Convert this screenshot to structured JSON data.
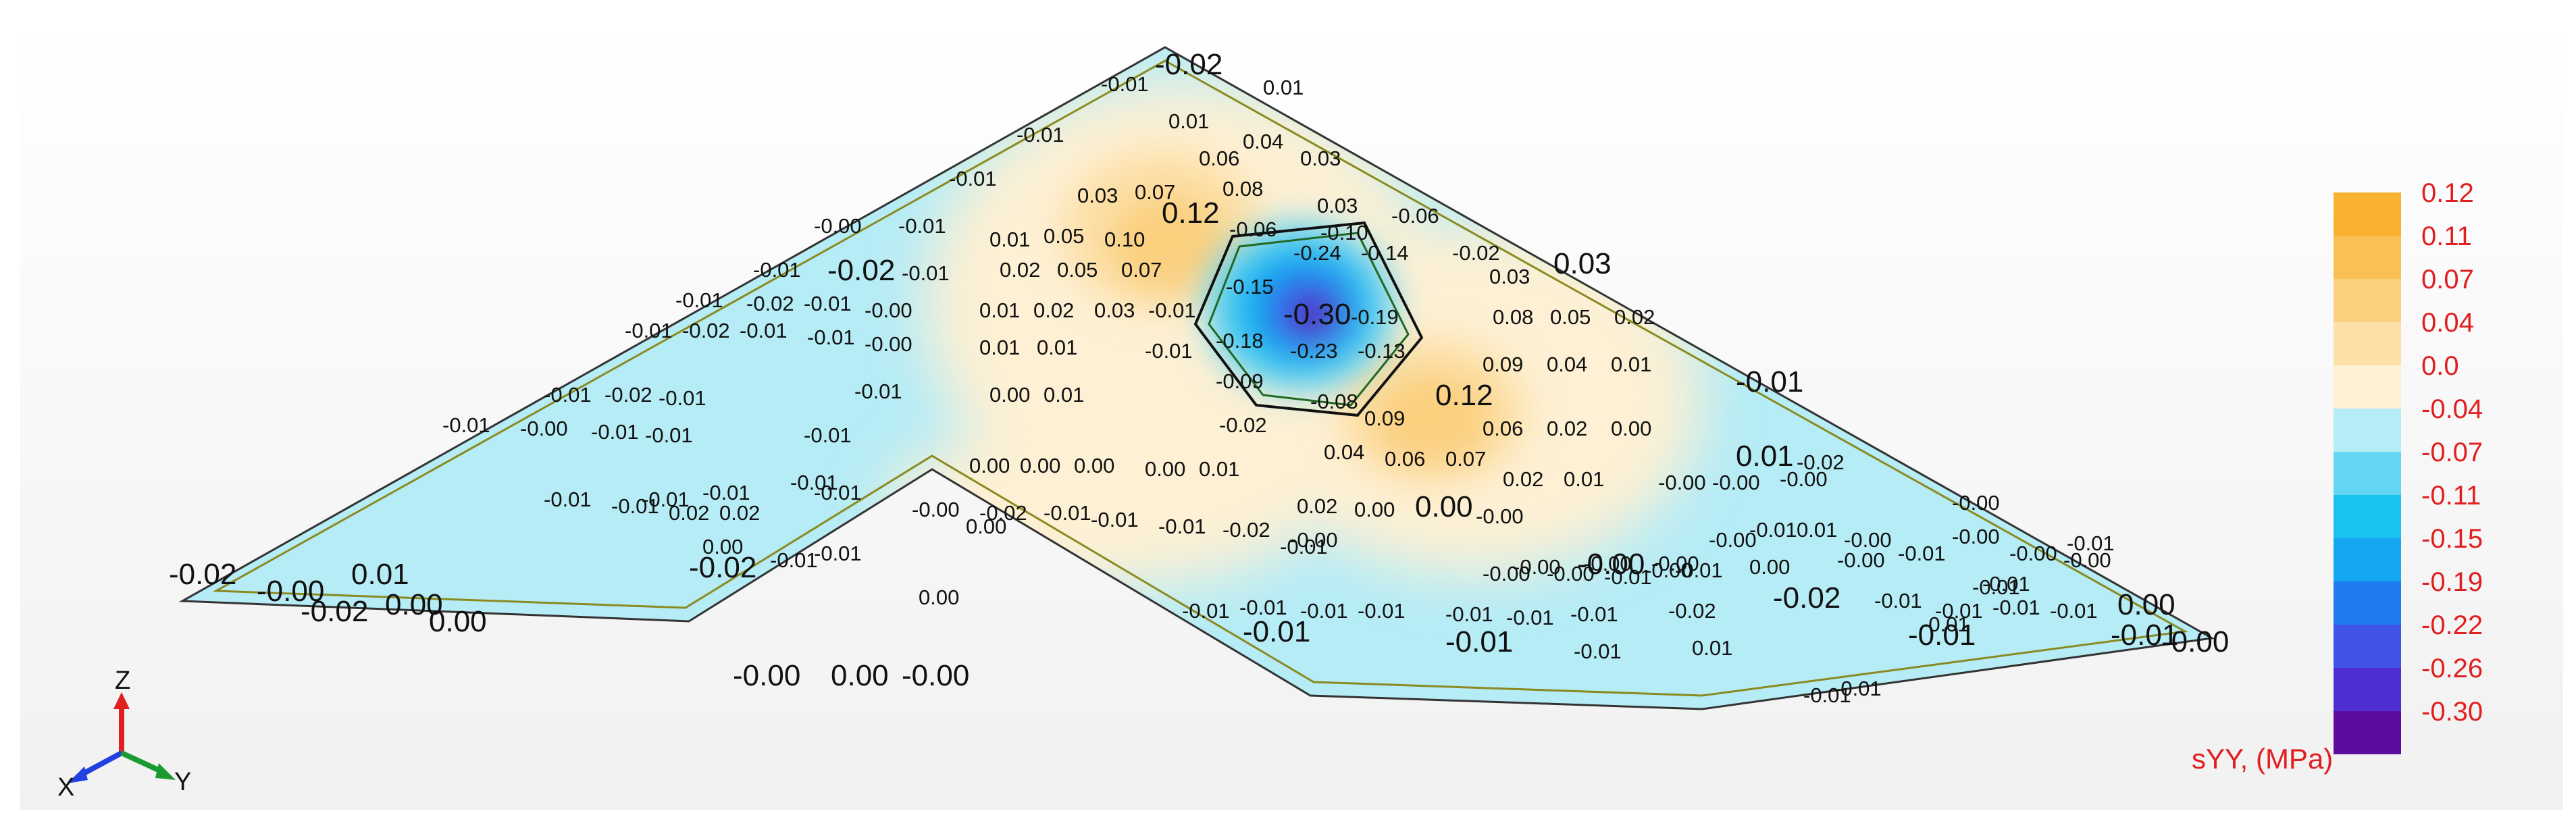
{
  "legend": {
    "quantity": "sYY, (MPa)",
    "entries": [
      {
        "label": "0.12",
        "color": "#f9b22f"
      },
      {
        "label": "0.11",
        "color": "#fac055"
      },
      {
        "label": "0.07",
        "color": "#fbd07f"
      },
      {
        "label": "0.04",
        "color": "#fde0a8"
      },
      {
        "label": "0.0",
        "color": "#fdf0d4"
      },
      {
        "label": "-0.04",
        "color": "#b6ecf6"
      },
      {
        "label": "-0.07",
        "color": "#64d5f3"
      },
      {
        "label": "-0.11",
        "color": "#18c3f1"
      },
      {
        "label": "-0.15",
        "color": "#14a6ee"
      },
      {
        "label": "-0.19",
        "color": "#1e7cf0"
      },
      {
        "label": "-0.22",
        "color": "#3f53e6"
      },
      {
        "label": "-0.26",
        "color": "#4e2ed0"
      },
      {
        "label": "-0.30",
        "color": "#5c0d9e"
      }
    ]
  },
  "axes_triad": {
    "z": "Z",
    "x": "X",
    "y": "Y",
    "z_color": "#e02020",
    "x_color": "#2040e0",
    "y_color": "#1a9a30"
  },
  "contour_labels": [
    {
      "t": "-0.02",
      "big": true
    },
    {
      "t": "-0.01"
    },
    {
      "t": "0.01"
    },
    {
      "t": "0.01"
    },
    {
      "t": "0.04"
    },
    {
      "t": "0.03"
    },
    {
      "t": "0.06"
    },
    {
      "t": "0.03"
    },
    {
      "t": "-0.01"
    },
    {
      "t": "0.03"
    },
    {
      "t": "0.07"
    },
    {
      "t": "0.08"
    },
    {
      "t": "-0.01"
    },
    {
      "t": "0.12",
      "big": true
    },
    {
      "t": "-0.06"
    },
    {
      "t": "-0.10"
    },
    {
      "t": "-0.06"
    },
    {
      "t": "-0.00"
    },
    {
      "t": "-0.01"
    },
    {
      "t": "0.01"
    },
    {
      "t": "0.05"
    },
    {
      "t": "0.10"
    },
    {
      "t": "-0.24"
    },
    {
      "t": "-0.14"
    },
    {
      "t": "-0.02"
    },
    {
      "t": "-0.01"
    },
    {
      "t": "-0.02",
      "big": true
    },
    {
      "t": "-0.01"
    },
    {
      "t": "0.02"
    },
    {
      "t": "0.05"
    },
    {
      "t": "0.07"
    },
    {
      "t": "-0.15"
    },
    {
      "t": "0.03"
    },
    {
      "t": "0.03",
      "big": true
    },
    {
      "t": "-0.01"
    },
    {
      "t": "-0.02"
    },
    {
      "t": "-0.01"
    },
    {
      "t": "-0.00"
    },
    {
      "t": "0.01"
    },
    {
      "t": "0.02"
    },
    {
      "t": "0.03"
    },
    {
      "t": "-0.01"
    },
    {
      "t": "-0.30",
      "big": true
    },
    {
      "t": "-0.19"
    },
    {
      "t": "0.08"
    },
    {
      "t": "0.05"
    },
    {
      "t": "0.02"
    },
    {
      "t": "-0.01"
    },
    {
      "t": "-0.02"
    },
    {
      "t": "-0.01"
    },
    {
      "t": "-0.01"
    },
    {
      "t": "-0.00"
    },
    {
      "t": "0.01"
    },
    {
      "t": "0.01"
    },
    {
      "t": "-0.18"
    },
    {
      "t": "-0.23"
    },
    {
      "t": "-0.13"
    },
    {
      "t": "-0.01"
    },
    {
      "t": "-0.09"
    },
    {
      "t": "0.09"
    },
    {
      "t": "0.04"
    },
    {
      "t": "0.01"
    },
    {
      "t": "-0.01",
      "big": true
    },
    {
      "t": "-0.01"
    },
    {
      "t": "-0.02"
    },
    {
      "t": "-0.01"
    },
    {
      "t": "-0.01"
    },
    {
      "t": "0.00"
    },
    {
      "t": "0.01"
    },
    {
      "t": "-0.08"
    },
    {
      "t": "0.12",
      "big": true
    },
    {
      "t": "-0.02"
    },
    {
      "t": "0.09"
    },
    {
      "t": "0.06"
    },
    {
      "t": "0.02"
    },
    {
      "t": "0.00"
    },
    {
      "t": "-0.01"
    },
    {
      "t": "-0.00"
    },
    {
      "t": "-0.01"
    },
    {
      "t": "-0.01"
    },
    {
      "t": "-0.01"
    },
    {
      "t": "-0.01"
    },
    {
      "t": "0.04"
    },
    {
      "t": "0.06"
    },
    {
      "t": "0.07"
    },
    {
      "t": "0.00"
    },
    {
      "t": "0.00"
    },
    {
      "t": "0.00"
    },
    {
      "t": "0.00"
    },
    {
      "t": "0.01"
    },
    {
      "t": "0.02"
    },
    {
      "t": "0.01"
    },
    {
      "t": "-0.00"
    },
    {
      "t": "-0.00"
    },
    {
      "t": "-0.00"
    },
    {
      "t": "-0.01"
    },
    {
      "t": "-0.01"
    },
    {
      "t": "-0.01"
    },
    {
      "t": "0.01",
      "big": true
    },
    {
      "t": "-0.02"
    },
    {
      "t": "-0.01"
    },
    {
      "t": "-0.01"
    },
    {
      "t": "0.02"
    },
    {
      "t": "0.02"
    },
    {
      "t": "0.02"
    },
    {
      "t": "0.00"
    },
    {
      "t": "0.00",
      "big": true
    },
    {
      "t": "-0.00"
    },
    {
      "t": "-0.00"
    },
    {
      "t": "-0.00"
    },
    {
      "t": "-0.02"
    },
    {
      "t": "-0.01"
    },
    {
      "t": "-0.01"
    },
    {
      "t": "-0.01"
    },
    {
      "t": "-0.01"
    },
    {
      "t": "-0.02"
    },
    {
      "t": "-0.00"
    },
    {
      "t": "-0.00"
    },
    {
      "t": "0.00"
    },
    {
      "t": "0.01"
    },
    {
      "t": "-0.00"
    },
    {
      "t": "-0.00"
    },
    {
      "t": "-0.00"
    },
    {
      "t": "-0.00",
      "big": true
    },
    {
      "t": "-0.00"
    },
    {
      "t": "-0.00"
    },
    {
      "t": "-0.01"
    },
    {
      "t": "-0.01"
    },
    {
      "t": "-0.01"
    },
    {
      "t": "-0.01"
    },
    {
      "t": "-0.02",
      "big": true
    },
    {
      "t": "-0.01"
    },
    {
      "t": "-0.00"
    },
    {
      "t": "-0.00"
    },
    {
      "t": "-0.00"
    },
    {
      "t": "-0.00"
    },
    {
      "t": "-0.00"
    },
    {
      "t": "-0.00"
    },
    {
      "t": "-0.01"
    },
    {
      "t": "-0.01"
    },
    {
      "t": "-0.01"
    },
    {
      "t": "-0.01"
    },
    {
      "t": "-0.01"
    },
    {
      "t": "-0.01"
    },
    {
      "t": "-0.01"
    },
    {
      "t": "-0.01"
    },
    {
      "t": "-0.01"
    },
    {
      "t": "-0.01"
    },
    {
      "t": "-0.01"
    },
    {
      "t": "-0.01"
    },
    {
      "t": "-0.02"
    },
    {
      "t": "-0.02",
      "big": true
    },
    {
      "t": "-0.01"
    },
    {
      "t": "-0.01"
    },
    {
      "t": "-0.01"
    },
    {
      "t": "-0.01"
    },
    {
      "t": "-0.01",
      "big": true
    },
    {
      "t": "-0.01",
      "big": true
    },
    {
      "t": "-0.01",
      "big": true
    },
    {
      "t": "-0.01"
    },
    {
      "t": "0.01"
    },
    {
      "t": "0.00"
    },
    {
      "t": "0.00"
    },
    {
      "t": "0.00"
    },
    {
      "t": "0.00",
      "big": true
    },
    {
      "t": "-0.00",
      "big": true
    },
    {
      "t": "0.00",
      "big": true
    },
    {
      "t": "-0.00",
      "big": true
    },
    {
      "t": "-0.01"
    },
    {
      "t": "-0.01"
    },
    {
      "t": "-0.02",
      "big": true
    },
    {
      "t": "0.01",
      "big": true
    },
    {
      "t": "-0.01",
      "big": true
    },
    {
      "t": "-0.00",
      "big": true
    },
    {
      "t": "-0.00",
      "big": true
    },
    {
      "t": "0.00",
      "big": true
    },
    {
      "t": "-0.02",
      "big": true
    },
    {
      "t": "0.00",
      "big": true
    }
  ]
}
